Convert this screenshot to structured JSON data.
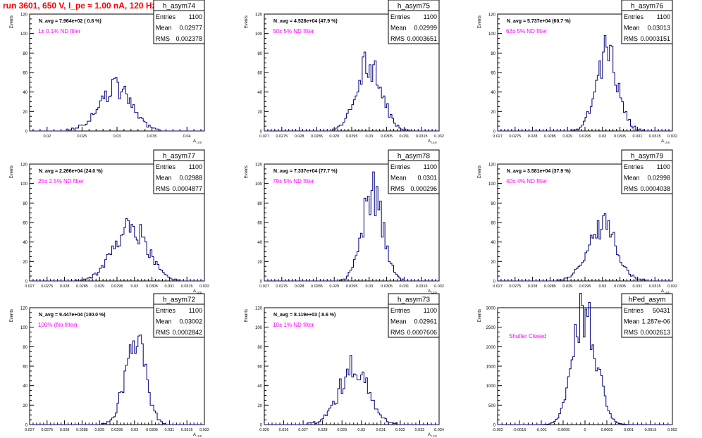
{
  "run_title": "run 3601,   650 V, I_pe ≈ 1.00 nA, 120 Hz",
  "colors": {
    "hist": "#000080",
    "title": "#ff0000",
    "filter_text": "#ff00ff",
    "axis": "#000000"
  },
  "chart_data": [
    {
      "type": "histogram",
      "hist_name": "h_asym74",
      "navg": "N_avg = 7.964e+02 ( 0.8 %)",
      "filter": "1± 0.1% ND filter",
      "stats": {
        "Entries": "1100",
        "Mean": "0.02977",
        "RMS": "0.002378"
      },
      "ylabel": "Events",
      "xlabel": "A_LED",
      "xlim": [
        0.0175,
        0.0425
      ],
      "ylim": [
        0,
        120
      ],
      "xticks": [
        0.02,
        0.025,
        0.03,
        0.035,
        0.04
      ],
      "xtick_labels": [
        "0.02",
        "0.025",
        "0.03",
        "0.035",
        "0.04"
      ],
      "yticks": [
        0,
        20,
        40,
        60,
        80,
        100,
        120
      ],
      "ytick_labels": [
        "0",
        "20",
        "40",
        "60",
        "80",
        "100",
        "120"
      ],
      "mean": 0.02977,
      "rms": 0.002378,
      "peak": 44,
      "nbins": 100
    },
    {
      "type": "histogram",
      "hist_name": "h_asym75",
      "navg": "N_avg = 4.528e+04 (47.9 %)",
      "filter": "50± 5% ND filter",
      "stats": {
        "Entries": "1100",
        "Mean": "0.02999",
        "RMS": "0.0003651"
      },
      "ylabel": "Events",
      "xlabel": "A_LED",
      "xlim": [
        0.027,
        0.032
      ],
      "ylim": [
        0,
        120
      ],
      "xticks": [
        0.027,
        0.0275,
        0.028,
        0.0285,
        0.029,
        0.0295,
        0.03,
        0.0305,
        0.031,
        0.0315,
        0.032
      ],
      "xtick_labels": [
        "0.027",
        "0.0275",
        "0.028",
        "0.0285",
        "0.029",
        "0.0295",
        "0.03",
        "0.0305",
        "0.031",
        "0.0315",
        "0.032"
      ],
      "yticks": [
        0,
        20,
        40,
        60,
        80,
        100,
        120
      ],
      "ytick_labels": [
        "0",
        "20",
        "40",
        "60",
        "80",
        "100",
        "120"
      ],
      "mean": 0.02999,
      "rms": 0.0003651,
      "peak": 68,
      "nbins": 100
    },
    {
      "type": "histogram",
      "hist_name": "h_asym76",
      "navg": "N_avg = 5.737e+04 (60.7 %)",
      "filter": "63± 5% ND filter",
      "stats": {
        "Entries": "1100",
        "Mean": "0.03013",
        "RMS": "0.0003151"
      },
      "ylabel": "Events",
      "xlabel": "A_LED",
      "xlim": [
        0.027,
        0.032
      ],
      "ylim": [
        0,
        120
      ],
      "xticks": [
        0.027,
        0.0275,
        0.028,
        0.0285,
        0.029,
        0.0295,
        0.03,
        0.0305,
        0.031,
        0.0315,
        0.032
      ],
      "xtick_labels": [
        "0.027",
        "0.0275",
        "0.028",
        "0.0285",
        "0.029",
        "0.0295",
        "0.03",
        "0.0305",
        "0.031",
        "0.0315",
        "0.032"
      ],
      "yticks": [
        0,
        20,
        40,
        60,
        80,
        100,
        120
      ],
      "ytick_labels": [
        "0",
        "20",
        "40",
        "60",
        "80",
        "100",
        "120"
      ],
      "mean": 0.03013,
      "rms": 0.0003151,
      "peak": 80,
      "nbins": 100
    },
    {
      "type": "histogram",
      "hist_name": "h_asym77",
      "navg": "N_avg = 2.266e+04 (24.0 %)",
      "filter": "25± 2.5% ND filter",
      "stats": {
        "Entries": "1100",
        "Mean": "0.02988",
        "RMS": "0.0004877"
      },
      "ylabel": "Events",
      "xlabel": "A_LED",
      "xlim": [
        0.027,
        0.032
      ],
      "ylim": [
        0,
        120
      ],
      "xticks": [
        0.027,
        0.0275,
        0.028,
        0.0285,
        0.029,
        0.0295,
        0.03,
        0.0305,
        0.031,
        0.0315,
        0.032
      ],
      "xtick_labels": [
        "0.027",
        "0.0275",
        "0.028",
        "0.0285",
        "0.029",
        "0.0295",
        "0.03",
        "0.0305",
        "0.031",
        "0.0315",
        "0.032"
      ],
      "yticks": [
        0,
        20,
        40,
        60,
        80,
        100,
        120
      ],
      "ytick_labels": [
        "0",
        "20",
        "40",
        "60",
        "80",
        "100",
        "120"
      ],
      "mean": 0.02988,
      "rms": 0.0004877,
      "peak": 55,
      "nbins": 100
    },
    {
      "type": "histogram",
      "hist_name": "h_asym78",
      "navg": "N_avg = 7.337e+04 (77.7 %)",
      "filter": "79± 5% ND filter",
      "stats": {
        "Entries": "1100",
        "Mean": "0.0301",
        "RMS": "0.000296"
      },
      "ylabel": "Events",
      "xlabel": "A_LED",
      "xlim": [
        0.027,
        0.032
      ],
      "ylim": [
        0,
        120
      ],
      "xticks": [
        0.027,
        0.0275,
        0.028,
        0.0285,
        0.029,
        0.0295,
        0.03,
        0.0305,
        0.031,
        0.0315,
        0.032
      ],
      "xtick_labels": [
        "0.027",
        "0.0275",
        "0.028",
        "0.0285",
        "0.029",
        "0.0295",
        "0.03",
        "0.0305",
        "0.031",
        "0.0315",
        "0.032"
      ],
      "yticks": [
        0,
        20,
        40,
        60,
        80,
        100,
        120
      ],
      "ytick_labels": [
        "0",
        "20",
        "40",
        "60",
        "80",
        "100",
        "120"
      ],
      "mean": 0.0301,
      "rms": 0.000296,
      "peak": 90,
      "nbins": 100
    },
    {
      "type": "histogram",
      "hist_name": "h_asym79",
      "navg": "N_avg = 3.581e+04 (37.9 %)",
      "filter": "40± 4% ND filter",
      "stats": {
        "Entries": "1100",
        "Mean": "0.02998",
        "RMS": "0.0004038"
      },
      "ylabel": "Events",
      "xlabel": "A_LED",
      "xlim": [
        0.027,
        0.032
      ],
      "ylim": [
        0,
        120
      ],
      "xticks": [
        0.027,
        0.0275,
        0.028,
        0.0285,
        0.029,
        0.0295,
        0.03,
        0.0305,
        0.031,
        0.0315,
        0.032
      ],
      "xtick_labels": [
        "0.027",
        "0.0275",
        "0.028",
        "0.0285",
        "0.029",
        "0.0295",
        "0.03",
        "0.0305",
        "0.031",
        "0.0315",
        "0.032"
      ],
      "yticks": [
        0,
        20,
        40,
        60,
        80,
        100,
        120
      ],
      "ytick_labels": [
        "0",
        "20",
        "40",
        "60",
        "80",
        "100",
        "120"
      ],
      "mean": 0.02998,
      "rms": 0.0004038,
      "peak": 57,
      "nbins": 100
    },
    {
      "type": "histogram",
      "hist_name": "h_asym72",
      "navg": "N_avg = 9.447e+04 (100.0 %)",
      "filter": "100% (No filter)",
      "stats": {
        "Entries": "1100",
        "Mean": "0.03002",
        "RMS": "0.0002842"
      },
      "ylabel": "Events",
      "xlabel": "A_LED",
      "xlim": [
        0.027,
        0.032
      ],
      "ylim": [
        0,
        120
      ],
      "xticks": [
        0.027,
        0.0275,
        0.028,
        0.0285,
        0.029,
        0.0295,
        0.03,
        0.0305,
        0.031,
        0.0315,
        0.032
      ],
      "xtick_labels": [
        "0.027",
        "0.0275",
        "0.028",
        "0.0285",
        "0.029",
        "0.0295",
        "0.03",
        "0.0305",
        "0.031",
        "0.0315",
        "0.032"
      ],
      "yticks": [
        0,
        20,
        40,
        60,
        80,
        100,
        120
      ],
      "ytick_labels": [
        "0",
        "20",
        "40",
        "60",
        "80",
        "100",
        "120"
      ],
      "mean": 0.03002,
      "rms": 0.0002842,
      "peak": 88,
      "nbins": 100
    },
    {
      "type": "histogram",
      "hist_name": "h_asym73",
      "navg": "N_avg = 8.119e+03 ( 8.6 %)",
      "filter": "10± 1% ND filter",
      "stats": {
        "Entries": "1100",
        "Mean": "0.02961",
        "RMS": "0.0007606"
      },
      "ylabel": "Events",
      "xlabel": "A_LED",
      "xlim": [
        0.025,
        0.034
      ],
      "ylim": [
        0,
        120
      ],
      "xticks": [
        0.025,
        0.026,
        0.027,
        0.028,
        0.029,
        0.03,
        0.031,
        0.032,
        0.033,
        0.034
      ],
      "xtick_labels": [
        "0.025",
        "0.026",
        "0.027",
        "0.028",
        "0.029",
        "0.03",
        "0.031",
        "0.032",
        "0.033",
        "0.034"
      ],
      "yticks": [
        0,
        20,
        40,
        60,
        80,
        100,
        120
      ],
      "ytick_labels": [
        "0",
        "20",
        "40",
        "60",
        "80",
        "100",
        "120"
      ],
      "mean": 0.02961,
      "rms": 0.0007606,
      "peak": 58,
      "nbins": 100
    },
    {
      "type": "histogram",
      "hist_name": "hPed_asym",
      "navg": "",
      "filter": "Shutter Closed",
      "stats": {
        "Entries": "50431",
        "Mean": "1.287e-06",
        "RMS": "0.0002613"
      },
      "ylabel": "Events",
      "xlabel": "",
      "xlim": [
        -0.002,
        0.002
      ],
      "ylim": [
        0,
        3000
      ],
      "xticks": [
        -0.002,
        -0.0015,
        -0.001,
        -0.0005,
        0,
        0.0005,
        0.001,
        0.0015,
        0.002
      ],
      "xtick_labels": [
        "-0.002",
        "-0.0015",
        "-0.001",
        "-0.0005",
        "0",
        "0.0005",
        "0.001",
        "0.0015",
        "0.002"
      ],
      "yticks": [
        0,
        500,
        1000,
        1500,
        2000,
        2500,
        3000
      ],
      "ytick_labels": [
        "0",
        "500",
        "1000",
        "1500",
        "2000",
        "2500",
        "3000"
      ],
      "mean": 1.287e-06,
      "rms": 0.0002613,
      "peak": 2950,
      "nbins": 100
    }
  ]
}
